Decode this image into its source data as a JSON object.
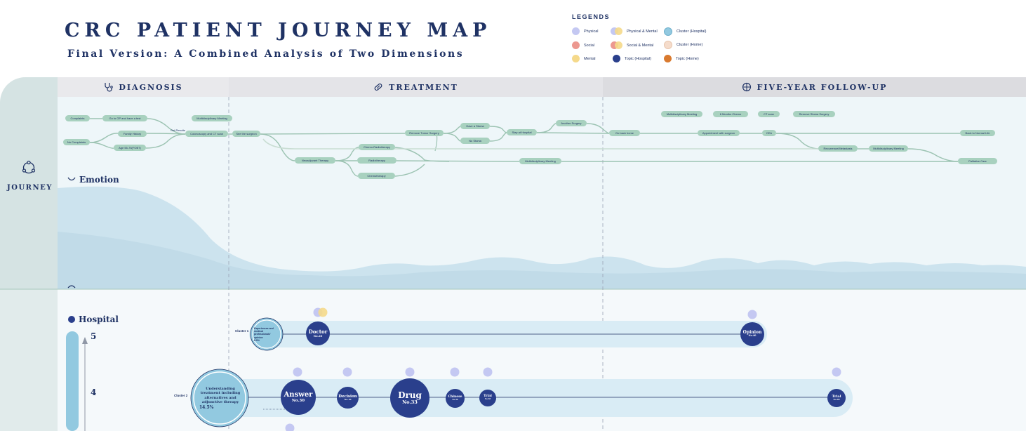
{
  "header": {
    "title": "CRC PATIENT JOURNEY MAP",
    "subtitle": "Final Version: A Combined Analysis of Two Dimensions"
  },
  "legend": {
    "title": "LEGENDS",
    "items": [
      {
        "label": "Physical",
        "color": "#c4c8f2"
      },
      {
        "label": "Social",
        "color": "#ec9890"
      },
      {
        "label": "Mental",
        "color": "#f5d98a"
      },
      {
        "label": "Physical & Mental",
        "colors": [
          "#c4c8f2",
          "#f5d98a"
        ]
      },
      {
        "label": "Social & Mental",
        "colors": [
          "#ec9890",
          "#f5d98a"
        ]
      },
      {
        "label": "Topic (Hospital)",
        "color": "#2a3f8c"
      },
      {
        "label": "Cluster (Hospital)",
        "color": "#92c9e0"
      },
      {
        "label": "Cluster (Home)",
        "color": "#f5dccb"
      },
      {
        "label": "Topic (Home)",
        "color": "#d97a2f"
      }
    ]
  },
  "phases": {
    "diagnosis": "DIAGNOSIS",
    "treatment": "TREATMENT",
    "followup": "FIVE-YEAR FOLLOW-UP"
  },
  "sidebar": {
    "journey_label": "JOURNEY"
  },
  "journey_nodes": [
    {
      "id": "complaints",
      "label": "Complaints"
    },
    {
      "id": "no_complaints",
      "label": "No Complaints"
    },
    {
      "id": "go_gp",
      "label": "Go to GP and have a test"
    },
    {
      "id": "family_history",
      "label": "Family History"
    },
    {
      "id": "age",
      "label": "Age 55-75(FOBT)"
    },
    {
      "id": "get_results",
      "label": "Get Results"
    },
    {
      "id": "mdm_diag",
      "label": "Multidisciplinary Meeting"
    },
    {
      "id": "colonoscopy",
      "label": "Colonoscopy and CT scan"
    },
    {
      "id": "see_surgeon",
      "label": "See the surgeon"
    },
    {
      "id": "neoadjuvant",
      "label": "Neoadjuvant Therapy"
    },
    {
      "id": "chemo_radio",
      "label": "Chemo-Radiotherapy"
    },
    {
      "id": "radiotherapy",
      "label": "Radiotherapy"
    },
    {
      "id": "chemotherapy",
      "label": "Chemotherapy"
    },
    {
      "id": "remove_tumor",
      "label": "Remove Tumor Surgery"
    },
    {
      "id": "have_stoma",
      "label": "Have a Stoma"
    },
    {
      "id": "no_stoma",
      "label": "No Stoma"
    },
    {
      "id": "stay_hospital",
      "label": "Stay at Hospital"
    },
    {
      "id": "another_surgery",
      "label": "Another Surgery"
    },
    {
      "id": "mdm_treat",
      "label": "Multidisciplinary Meeting"
    },
    {
      "id": "go_home",
      "label": "Go back home"
    },
    {
      "id": "mdm_follow",
      "label": "Multidisciplinary Meeting"
    },
    {
      "id": "six_months",
      "label": "6 Months Chemo"
    },
    {
      "id": "ct_scan",
      "label": "CT scan"
    },
    {
      "id": "remove_stoma",
      "label": "Remove Stoma Surgery"
    },
    {
      "id": "appointment",
      "label": "Appointment with surgeon"
    },
    {
      "id": "cea",
      "label": "CEA"
    },
    {
      "id": "recurrence",
      "label": "Recurrence/Metastasis"
    },
    {
      "id": "mdm_late",
      "label": "Multidisciplinary Meeting"
    },
    {
      "id": "back_normal",
      "label": "Back to Normal Life"
    },
    {
      "id": "palliative",
      "label": "Palliative Care"
    }
  ],
  "emotion": {
    "label": "Emotion"
  },
  "hospital": {
    "label": "Hospital",
    "axis_ticks": [
      "5",
      "4"
    ]
  },
  "clusters": [
    {
      "label": "Cluster 1",
      "title": "Experiences and medical professionals' opinion",
      "share": "6.9%",
      "topics": [
        {
          "name": "Doctor",
          "no": "No.20"
        },
        {
          "name": "Opinion",
          "no": "No.40"
        }
      ]
    },
    {
      "label": "Cluster 2",
      "title": "Understanding treatment including alternatives and adjunctive therapy",
      "share": "14.5%",
      "topics": [
        {
          "name": "Answer",
          "no": "No.30"
        },
        {
          "name": "Decision",
          "no": "No.10"
        },
        {
          "name": "Drug",
          "no": "No.33"
        },
        {
          "name": "Chinese",
          "no": "No.34"
        },
        {
          "name": "Trial",
          "no": "No.38"
        },
        {
          "name": "Trial",
          "no": "No.49"
        }
      ]
    }
  ],
  "colors": {
    "navy": "#1f3264",
    "node_green": "#a8d1bf",
    "line_green": "#9cc3b2",
    "topic_blue": "#2a3f8c",
    "cluster_blue": "#92c9e0",
    "band": "#d9ecf5",
    "mountain": "#c5dfec"
  }
}
